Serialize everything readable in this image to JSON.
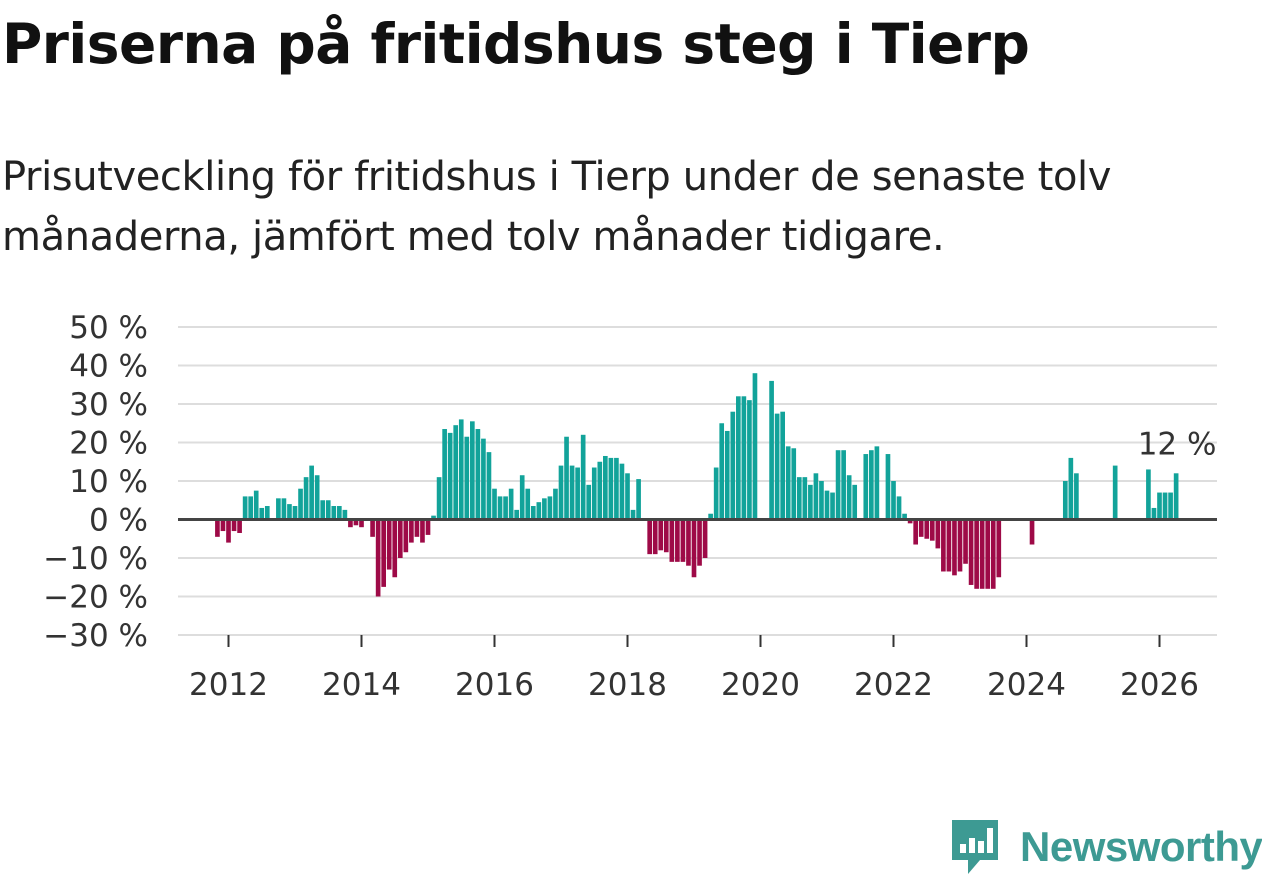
{
  "title": "Priserna på fritidshus steg i Tierp",
  "subtitle": "Prisutveckling för fritidshus i Tierp under de senaste tolv månaderna, jämfört med tolv månader tidigare.",
  "brand": "Newsworthy",
  "colors": {
    "positive": "#12a39a",
    "negative": "#9e0a47",
    "grid": "#dddddd",
    "zero": "#444444",
    "brand": "#3d9a93"
  },
  "chart_data": {
    "type": "bar",
    "title": "Priserna på fritidshus steg i Tierp",
    "xlabel": "",
    "ylabel": "",
    "ylim": [
      -30,
      50
    ],
    "y_ticks": [
      50,
      40,
      30,
      20,
      10,
      0,
      -10,
      -20,
      -30
    ],
    "y_tick_labels": [
      "50 %",
      "40 %",
      "30 %",
      "20 %",
      "10 %",
      "0 %",
      "−10 %",
      "−20 %",
      "−30 %"
    ],
    "x_tick_years": [
      2012,
      2014,
      2016,
      2018,
      2020,
      2022,
      2024,
      2026
    ],
    "x_tick_labels": [
      "2012",
      "2014",
      "2016",
      "2018",
      "2020",
      "2022",
      "2024",
      "2026"
    ],
    "x_range_years": [
      2011.25,
      2026.8
    ],
    "start_year": 2011,
    "start_month": 11,
    "unit": "%",
    "last_label": "12 %",
    "values": [
      -4.5,
      -3,
      -6,
      -3,
      -3.5,
      6,
      6,
      7.5,
      3,
      3.5,
      null,
      5.5,
      5.5,
      4,
      3.5,
      8,
      11,
      14,
      11.5,
      5,
      5,
      3.5,
      3.5,
      2.5,
      -2,
      -1.5,
      -2,
      null,
      -4.5,
      -20,
      -17.5,
      -13,
      -15,
      -10,
      -8.5,
      -6,
      -4.5,
      -6,
      -4,
      1,
      11,
      23.5,
      22.5,
      24.5,
      26,
      21.5,
      25.5,
      23.5,
      21,
      17.5,
      8,
      6,
      6,
      8,
      2.5,
      11.5,
      8,
      3.5,
      4.5,
      5.5,
      6,
      8,
      14,
      21.5,
      14,
      13.5,
      22,
      9,
      13.5,
      15,
      16.5,
      16,
      16,
      14.5,
      12,
      2.5,
      10.5,
      null,
      -9,
      -9,
      -8,
      -8.5,
      -11,
      -11,
      -11,
      -12,
      -15,
      -12,
      -10,
      1.5,
      13.5,
      25,
      23,
      28,
      32,
      32,
      31,
      38,
      null,
      null,
      36,
      27.5,
      28,
      19,
      18.5,
      11,
      11,
      9,
      12,
      10,
      7.5,
      7,
      18,
      18,
      11.5,
      9,
      null,
      17,
      18,
      19,
      null,
      17,
      10,
      6,
      1.5,
      -1,
      -6.5,
      -4.5,
      -5,
      -5.5,
      -7.5,
      -13.5,
      -13.5,
      -14.5,
      -13.5,
      -11.5,
      -17,
      -18,
      -18,
      -18,
      -18,
      -15,
      null,
      null,
      null,
      null,
      null,
      -6.5,
      null,
      null,
      null,
      null,
      null,
      10,
      16,
      12,
      null,
      null,
      null,
      null,
      null,
      null,
      14,
      null,
      null,
      null,
      null,
      null,
      13,
      3,
      7,
      7,
      7,
      12
    ]
  }
}
